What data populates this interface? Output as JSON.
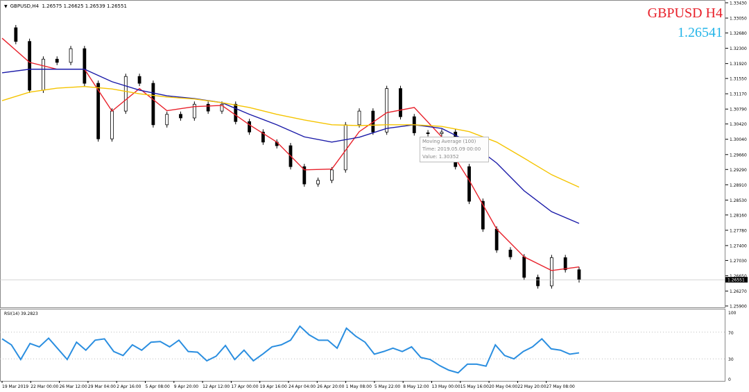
{
  "header": {
    "symbol_timeframe": "GBPUSD,H4",
    "ohlc": "1.26575 1.26625 1.26539 1.26551"
  },
  "overlay": {
    "symbol_title": "GBPUSD H4",
    "bid_price": "1.26541",
    "symbol_color": "#e8202a",
    "bid_color": "#22b4e8"
  },
  "tooltip": {
    "line1": "Moving Average (100)",
    "line2": "Time: 2019.05.09 00:00",
    "line3": "Value: 1.30352"
  },
  "chart_data": [
    {
      "type": "candlestick",
      "title": "GBPUSD,H4",
      "price_axis_ticks": [
        "1.33430",
        "1.33050",
        "1.32680",
        "1.32300",
        "1.31920",
        "1.31550",
        "1.31170",
        "1.30790",
        "1.30420",
        "1.30040",
        "1.29660",
        "1.29290",
        "1.28910",
        "1.28530",
        "1.28160",
        "1.27780",
        "1.27400",
        "1.27030",
        "1.26650",
        "1.26270",
        "1.25900"
      ],
      "ylim": [
        1.259,
        1.3343
      ],
      "current_price_label": "1.26551",
      "current_price": 1.26551,
      "time_axis_ticks": [
        "19 Mar 2019",
        "22 Mar 00:00",
        "26 Mar 12:00",
        "29 Mar 04:00",
        "2 Apr 16:00",
        "5 Apr 08:00",
        "9 Apr 20:00",
        "12 Apr 12:00",
        "17 Apr 00:00",
        "19 Apr 16:00",
        "24 Apr 04:00",
        "26 Apr 20:00",
        "1 May 08:00",
        "5 May 22:00",
        "8 May 12:00",
        "13 May 00:00",
        "15 May 16:00",
        "20 May 04:00",
        "22 May 20:00",
        "27 May 08:00"
      ],
      "grid": false,
      "closes": [
        1.3281,
        1.3247,
        1.3126,
        1.3203,
        1.3195,
        1.3229,
        1.3143,
        1.3005,
        1.3074,
        1.316,
        1.3143,
        1.304,
        1.3066,
        1.3057,
        1.3091,
        1.3074,
        1.3091,
        1.3048,
        1.3022,
        1.2997,
        1.2988,
        1.2936,
        1.2893,
        1.2902,
        1.2928,
        1.304,
        1.3074,
        1.3022,
        1.313,
        1.306,
        1.302,
        1.3018,
        1.3022,
        1.2936,
        1.285,
        1.2781,
        1.2729,
        1.2712,
        1.2661,
        1.264,
        1.271,
        1.268,
        1.26551
      ],
      "series": [
        {
          "color": "#e8202a",
          "values": [
            1.3255,
            1.3195,
            1.3178,
            1.3178,
            1.3074,
            1.313,
            1.3075,
            1.3085,
            1.3088,
            1.304,
            1.2997,
            1.2928,
            1.293,
            1.3023,
            1.307,
            1.3083,
            1.301,
            1.2902,
            1.2781,
            1.2712,
            1.2678,
            1.2687
          ]
        },
        {
          "name": "Moving Average (100)",
          "color": "#1a1aa8",
          "values": [
            1.3169,
            1.3178,
            1.3178,
            1.3178,
            1.3147,
            1.3126,
            1.3112,
            1.3105,
            1.3095,
            1.3066,
            1.304,
            1.301,
            1.2997,
            1.3009,
            1.3031,
            1.304,
            1.3031,
            1.2997,
            1.2945,
            1.2876,
            1.2824,
            1.2795
          ]
        },
        {
          "color": "#f5c400",
          "values": [
            1.31,
            1.3121,
            1.3131,
            1.3135,
            1.3129,
            1.3117,
            1.3109,
            1.3104,
            1.3095,
            1.3083,
            1.3066,
            1.3052,
            1.304,
            1.3038,
            1.304,
            1.304,
            1.3036,
            1.3023,
            1.2997,
            1.2957,
            1.2916,
            1.2885
          ]
        }
      ]
    },
    {
      "type": "line",
      "title": "RSI(14) 39.2823",
      "ylim": [
        0,
        100
      ],
      "y_ticks": [
        "100",
        "70",
        "30",
        "0"
      ],
      "levels": [
        70,
        30
      ],
      "series": [
        {
          "color": "#2a8ee0",
          "values": [
            60,
            51,
            29,
            53,
            48,
            61,
            45,
            29,
            55,
            43,
            58,
            60,
            41,
            35,
            51,
            43,
            55,
            56,
            48,
            58,
            41,
            40,
            27,
            34,
            50,
            29,
            43,
            27,
            37,
            48,
            51,
            58,
            79,
            66,
            58,
            58,
            46,
            76,
            64,
            55,
            37,
            41,
            46,
            41,
            48,
            32,
            29,
            20,
            13,
            9,
            22,
            22,
            19,
            51,
            35,
            30,
            41,
            48,
            60,
            45,
            43,
            37,
            39
          ]
        }
      ]
    }
  ]
}
